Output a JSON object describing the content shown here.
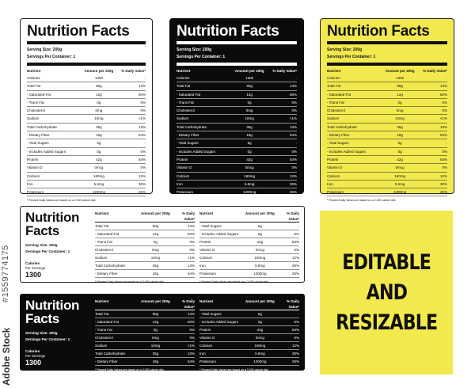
{
  "brand_label": "Adobe Stock",
  "image_id": "#1559774175",
  "promo": {
    "line1": "EDITABLE",
    "line2": "AND",
    "line3": "RESIZABLE"
  },
  "colors": {
    "yellow": "#f2e94e",
    "black": "#0b0b0b",
    "white": "#ffffff"
  },
  "label": {
    "title": "Nutrition Facts",
    "title_line1": "Nutrition",
    "title_line2": "Facts",
    "serving_size": "Serving Size: 200g",
    "servings_per_container": "Servings Per Container: 1",
    "header": {
      "nutrient": "Nutrient",
      "amount": "Amount per 200g",
      "dv": "% Daily Value*"
    },
    "calories_label": "Calories",
    "calories_sub": "Per Servings",
    "calories_value": "1300",
    "footnote": "* Percent Daily Values are based on a 2,000 calorie diet.",
    "rows": [
      {
        "name": "Calories",
        "amount": "1300",
        "dv": "-"
      },
      {
        "name": "Total Fat",
        "amount": "90g",
        "dv": "14%"
      },
      {
        "name": "- Saturated Fat",
        "amount": "12g",
        "dv": "60%"
      },
      {
        "name": "- Trans Fat",
        "amount": "0g",
        "dv": "0%"
      },
      {
        "name": "Cholesterol",
        "amount": "0mg",
        "dv": "0%"
      },
      {
        "name": "Sodium",
        "amount": "10mg",
        "dv": "<1%"
      },
      {
        "name": "Total Carbohydrate",
        "amount": "35g",
        "dv": "13%"
      },
      {
        "name": "- Dietary Fiber",
        "amount": "18g",
        "dv": "64%"
      },
      {
        "name": "- Total Sugars",
        "amount": "6g",
        "dv": "-"
      },
      {
        "name": "- Includes Added Sugars",
        "amount": "0g",
        "dv": "0%"
      },
      {
        "name": "Protein",
        "amount": "42g",
        "dv": "84%"
      },
      {
        "name": "Vitamin D",
        "amount": "0mcg",
        "dv": "0%"
      },
      {
        "name": "Calcium",
        "amount": "160mg",
        "dv": "12%"
      },
      {
        "name": "Iron",
        "amount": "5.6mg",
        "dv": "30%"
      },
      {
        "name": "Potassium",
        "amount": "1200mg",
        "dv": "25%"
      }
    ]
  }
}
